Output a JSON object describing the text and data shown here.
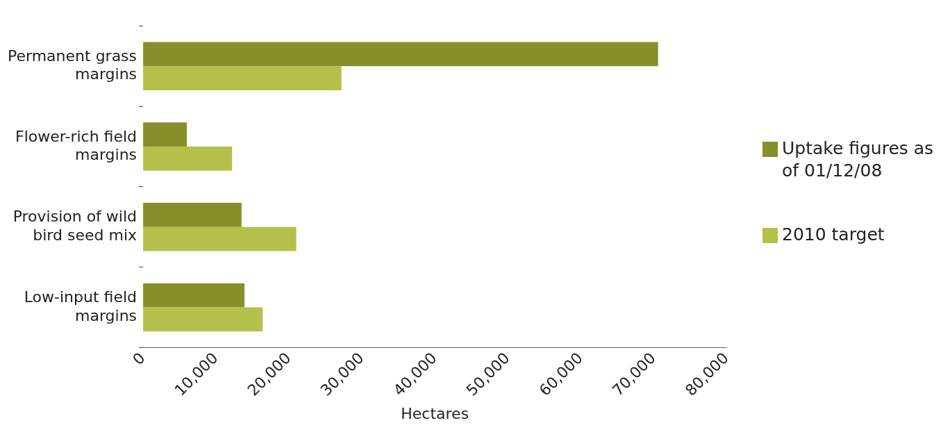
{
  "chart_data": {
    "type": "bar",
    "orientation": "horizontal",
    "xlabel": "Hectares",
    "categories": [
      "Permanent grass margins",
      "Flower-rich field margins",
      "Provision of wild bird seed mix",
      "Low-input field margins"
    ],
    "series": [
      {
        "name": "Uptake figures as of 01/12/08",
        "color": "#868f2a",
        "values": [
          70600,
          6000,
          13500,
          13900
        ]
      },
      {
        "name": "2010 target",
        "color": "#b5c04a",
        "values": [
          27200,
          12200,
          21000,
          16400
        ]
      }
    ],
    "xlim": [
      0,
      80000
    ],
    "xticks": [
      {
        "value": 0,
        "label": "0"
      },
      {
        "value": 10000,
        "label": "10,000"
      },
      {
        "value": 20000,
        "label": "20,000"
      },
      {
        "value": 30000,
        "label": "30,000"
      },
      {
        "value": 40000,
        "label": "40,000"
      },
      {
        "value": 50000,
        "label": "50,000"
      },
      {
        "value": 60000,
        "label": "60,000"
      },
      {
        "value": 70000,
        "label": "70,000"
      },
      {
        "value": 80000,
        "label": "80,000"
      }
    ],
    "grid": false,
    "legend": "right"
  }
}
